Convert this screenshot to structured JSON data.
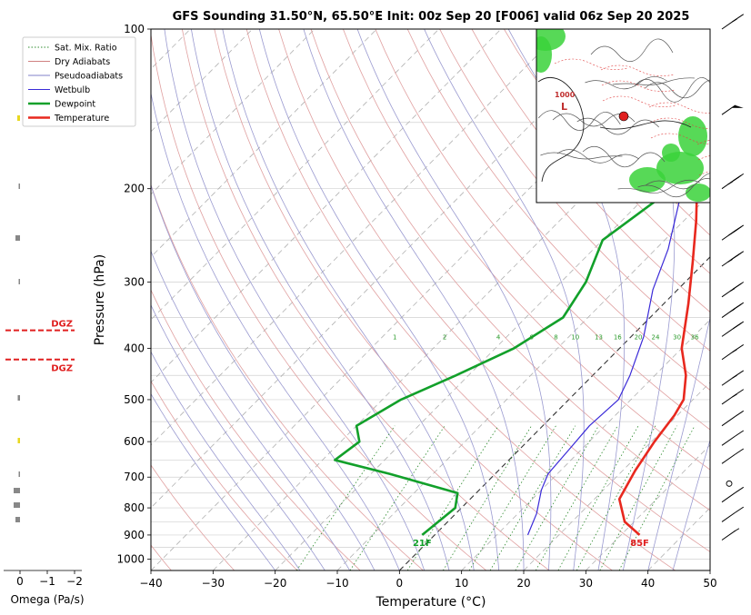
{
  "chart_data": {
    "type": "line",
    "subtype": "skew-T log-P sounding",
    "title": "GFS Sounding 31.50°N, 65.50°E Init: 00z Sep 20 [F006] valid 06z Sep 20 2025",
    "xlabel": "Temperature (°C)",
    "ylabel": "Pressure (hPa)",
    "xlim": [
      -40,
      50
    ],
    "ylim": [
      1050,
      100
    ],
    "y_scale": "log",
    "x_ticks": [
      "−40",
      "−30",
      "−20",
      "−10",
      "0",
      "10",
      "20",
      "30",
      "40",
      "50"
    ],
    "x_tick_values": [
      -40,
      -30,
      -20,
      -10,
      0,
      10,
      20,
      30,
      40,
      50
    ],
    "y_ticks": [
      100,
      200,
      300,
      400,
      500,
      600,
      700,
      800,
      900,
      1000
    ],
    "y_tick_labels": [
      "100",
      "200",
      "300",
      "400",
      "500",
      "600",
      "700",
      "800",
      "900",
      "1000"
    ],
    "grid": true,
    "legend_position": "top-left",
    "legend": [
      {
        "label": "Sat. Mix. Ratio",
        "color": "#2e8b2e",
        "style": "dotted"
      },
      {
        "label": "Dry Adiabats",
        "color": "#d08080",
        "style": "solid"
      },
      {
        "label": "Pseudoadiabats",
        "color": "#8080c8",
        "style": "solid"
      },
      {
        "label": "Wetbulb",
        "color": "#3a2ad8",
        "style": "solid"
      },
      {
        "label": "Dewpoint",
        "color": "#12a02a",
        "style": "solid-thick"
      },
      {
        "label": "Temperature",
        "color": "#e8281e",
        "style": "solid-thick"
      }
    ],
    "series": [
      {
        "name": "Temperature",
        "color": "#e8281e",
        "points": [
          [
            33,
            900
          ],
          [
            28.5,
            850
          ],
          [
            24,
            770
          ],
          [
            22,
            680
          ],
          [
            20.5,
            600
          ],
          [
            19.5,
            535
          ],
          [
            18.5,
            500
          ],
          [
            15,
            450
          ],
          [
            10,
            400
          ],
          [
            4,
            330
          ],
          [
            -2,
            275
          ],
          [
            -8,
            230
          ],
          [
            -13,
            200
          ],
          [
            -20,
            160
          ],
          [
            -26,
            130
          ],
          [
            -29,
            110
          ],
          [
            -31,
            100
          ]
        ]
      },
      {
        "name": "Wetbulb",
        "color": "#3a2ad8",
        "points": [
          [
            15,
            900
          ],
          [
            13,
            820
          ],
          [
            10,
            740
          ],
          [
            8.5,
            690
          ],
          [
            8,
            620
          ],
          [
            7.5,
            560
          ],
          [
            8,
            500
          ],
          [
            6,
            450
          ],
          [
            2,
            380
          ],
          [
            -4,
            310
          ],
          [
            -8,
            260
          ],
          [
            -14,
            210
          ]
        ]
      },
      {
        "name": "Dewpoint",
        "color": "#12a02a",
        "points": [
          [
            -2,
            900
          ],
          [
            -1,
            800
          ],
          [
            -3,
            750
          ],
          [
            -17,
            690
          ],
          [
            -28,
            650
          ],
          [
            -27,
            600
          ],
          [
            -30,
            560
          ],
          [
            -27,
            500
          ],
          [
            -22,
            450
          ],
          [
            -17,
            400
          ],
          [
            -14,
            350
          ],
          [
            -16,
            300
          ],
          [
            -20,
            250
          ],
          [
            -17,
            200
          ],
          [
            -18,
            150
          ],
          [
            -20,
            100
          ]
        ]
      }
    ],
    "mixing_ratio_labels": [
      "1",
      "2",
      "4",
      "6",
      "8",
      "10",
      "13",
      "16",
      "20",
      "24",
      "30",
      "36"
    ],
    "mixing_ratio_values": [
      1,
      2,
      4,
      6,
      8,
      10,
      13,
      16,
      20,
      24,
      30,
      36
    ],
    "annotations": {
      "surface_temperature": "85F",
      "surface_dewpoint": "21F",
      "dgz_label": "DGZ",
      "dgz_pressures": [
        370,
        420
      ]
    },
    "omega_panel": {
      "xlabel": "Omega (Pa/s)",
      "x_ticks": [
        "0",
        "−1",
        "−2"
      ]
    },
    "wind_barbs": [
      {
        "p": 100,
        "speed": 15
      },
      {
        "p": 145,
        "speed": 50
      },
      {
        "p": 200,
        "speed": 35
      },
      {
        "p": 250,
        "speed": 40
      },
      {
        "p": 280,
        "speed": 35
      },
      {
        "p": 320,
        "speed": 25
      },
      {
        "p": 350,
        "speed": 25
      },
      {
        "p": 380,
        "speed": 20
      },
      {
        "p": 420,
        "speed": 15
      },
      {
        "p": 470,
        "speed": 15
      },
      {
        "p": 510,
        "speed": 15
      },
      {
        "p": 560,
        "speed": 10
      },
      {
        "p": 610,
        "speed": 10
      },
      {
        "p": 660,
        "speed": 10
      },
      {
        "p": 720,
        "speed": 0
      },
      {
        "p": 780,
        "speed": 10
      },
      {
        "p": 850,
        "speed": 10
      },
      {
        "p": 920,
        "speed": 5
      }
    ],
    "inset_map": {
      "contour_labels": [
        "1000",
        "L"
      ],
      "marker_color": "#e02020"
    }
  }
}
